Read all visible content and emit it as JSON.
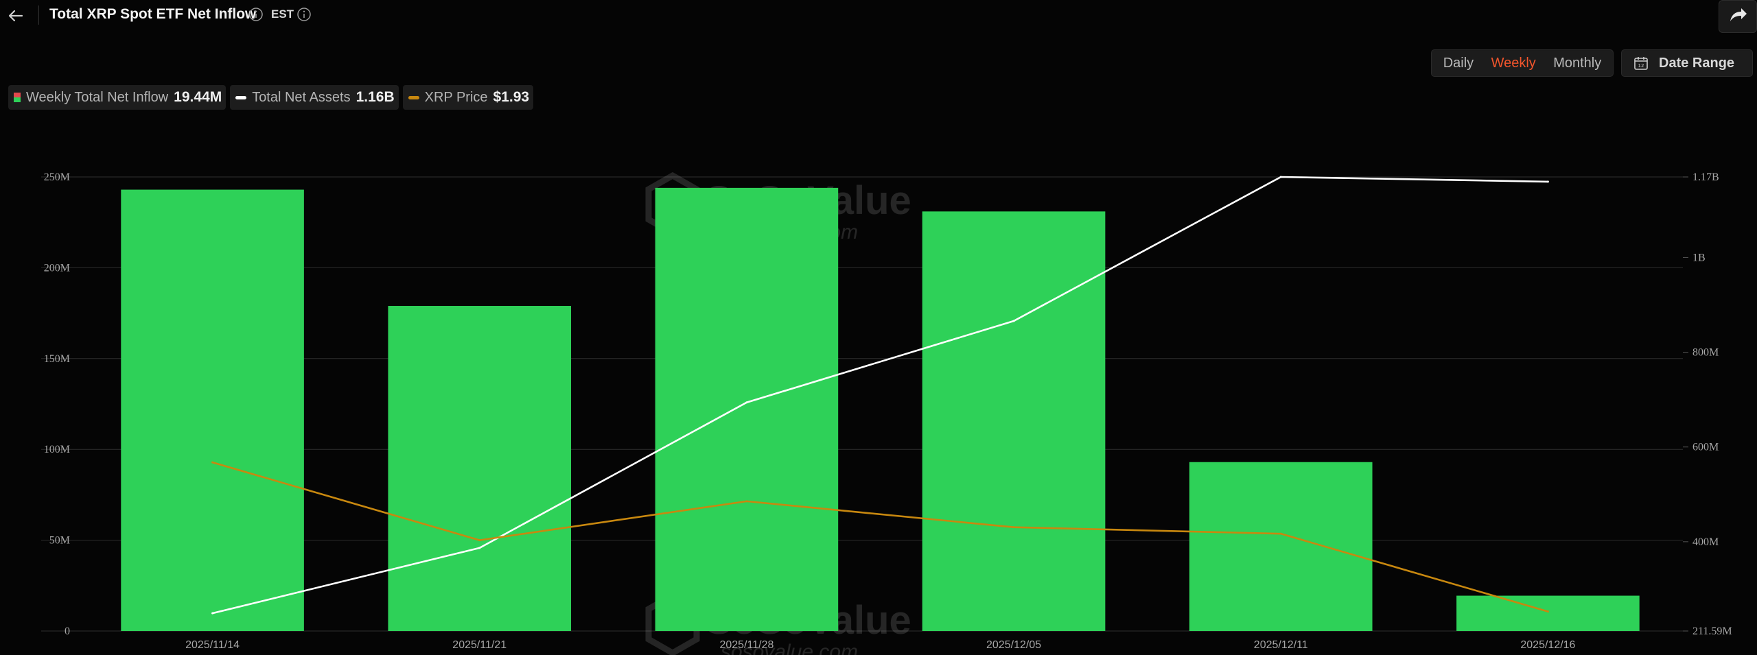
{
  "header": {
    "title": "Total XRP Spot ETF Net Inflow",
    "timezone": "EST"
  },
  "controls": {
    "periods": [
      "Daily",
      "Weekly",
      "Monthly"
    ],
    "active_period": "Weekly",
    "date_range_label": "Date Range"
  },
  "legend": {
    "items": [
      {
        "label": "Weekly Total Net Inflow",
        "value": "19.44M"
      },
      {
        "label": "Total Net Assets",
        "value": "1.16B"
      },
      {
        "label": "XRP Price",
        "value": "$1.93"
      }
    ]
  },
  "colors": {
    "bars": "#2ed158",
    "bars_negative": "#e5484d",
    "net_assets_line": "#ffffff",
    "price_line": "#c8880f",
    "active_tab": "#f2552c",
    "background": "#050505"
  },
  "watermark": {
    "brand": "SoSoValue",
    "domain": "sosovalue.com"
  },
  "chart_data": {
    "type": "bar",
    "categories": [
      "2025/11/14",
      "2025/11/21",
      "2025/11/28",
      "2025/12/05",
      "2025/12/11",
      "2025/12/16"
    ],
    "series": [
      {
        "name": "Weekly Total Net Inflow",
        "type": "bar",
        "axis": "left",
        "values": [
          243000000,
          179000000,
          244000000,
          231000000,
          93000000,
          19440000
        ]
      },
      {
        "name": "Total Net Assets",
        "type": "line",
        "axis": "right",
        "values": [
          249000000,
          387000000,
          694000000,
          866000000,
          1170000000,
          1160000000
        ]
      },
      {
        "name": "XRP Price",
        "type": "line",
        "axis": "hidden",
        "values": [
          2.16,
          2.04,
          2.1,
          2.06,
          2.05,
          1.93
        ]
      }
    ],
    "left_axis": {
      "ticks": [
        "0",
        "50M",
        "100M",
        "150M",
        "200M",
        "250M"
      ],
      "tick_values": [
        0,
        50000000,
        100000000,
        150000000,
        200000000,
        250000000
      ],
      "ylim": [
        0,
        250000000
      ]
    },
    "right_axis": {
      "ticks": [
        "211.59M",
        "400M",
        "600M",
        "800M",
        "1B",
        "1.17B"
      ],
      "tick_values": [
        211590000,
        400000000,
        600000000,
        800000000,
        1000000000,
        1170000000
      ],
      "ylim": [
        211590000,
        1170000000
      ]
    },
    "price_range": [
      1.9,
      2.6
    ],
    "grid": true,
    "legend_position": "top-left"
  }
}
